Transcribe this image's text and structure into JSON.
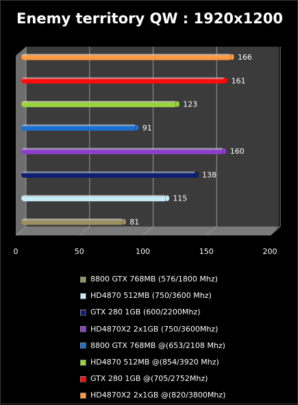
{
  "chart_data": {
    "type": "bar",
    "orientation": "horizontal",
    "title": "Enemy territory QW : 1920x1200",
    "xlim": [
      0,
      200
    ],
    "x_ticks": [
      0,
      50,
      100,
      150,
      200
    ],
    "grid": true,
    "legend_position": "bottom",
    "series": [
      {
        "name": "8800 GTX 768MB (576/1800 Mhz)",
        "value": 81,
        "color": "#9b9160"
      },
      {
        "name": "HD4870 512MB (750/3600 Mhz)",
        "value": 115,
        "color": "#c6ecf8"
      },
      {
        "name": "GTX 280 1GB (600/2200Mhz)",
        "value": 138,
        "color": "#0f1f70"
      },
      {
        "name": "HD4870X2 2x1GB (750/3600Mhz)",
        "value": 160,
        "color": "#8c3fc8"
      },
      {
        "name": "8800 GTX 768MB @(653/2108 Mhz)",
        "value": 91,
        "color": "#1c6fce"
      },
      {
        "name": "HD4870 512MB @(854/3920 Mhz)",
        "value": 123,
        "color": "#9ad43c"
      },
      {
        "name": "GTX 280 1GB @(705/2752Mhz)",
        "value": 161,
        "color": "#ff0c0c"
      },
      {
        "name": "HD4870X2 2x1GB @(820/3800Mhz)",
        "value": 166,
        "color": "#ff9a40"
      }
    ]
  }
}
